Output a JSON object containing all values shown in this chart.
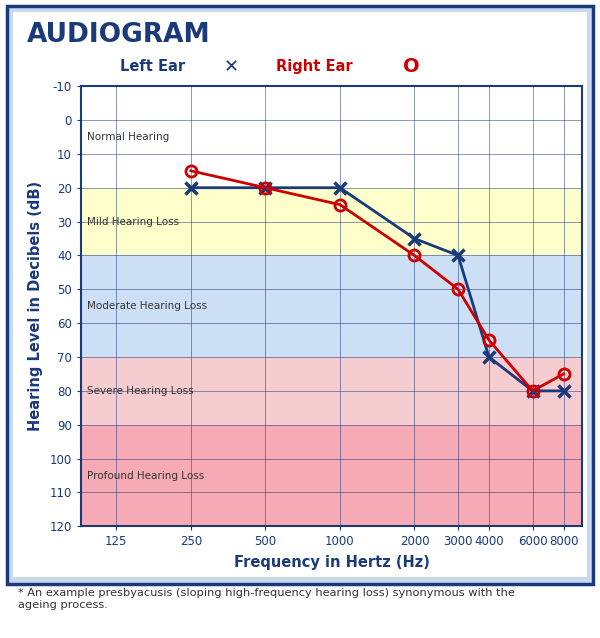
{
  "title": "AUDIOGRAM",
  "legend_left_label": "Left Ear",
  "legend_right_label": "Right Ear",
  "xlabel": "Frequency in Hertz (Hz)",
  "ylabel": "Hearing Level in Decibels (dB)",
  "footnote": "* An example presbyacusis (sloping high-frequency hearing loss) synonymous with the\nageing process.",
  "x_ticks": [
    125,
    250,
    500,
    1000,
    2000,
    3000,
    4000,
    6000,
    8000
  ],
  "x_tick_labels": [
    "125",
    "250",
    "500",
    "1000",
    "2000",
    "3000",
    "4000",
    "6000",
    "8000"
  ],
  "y_ticks": [
    -10,
    0,
    10,
    20,
    30,
    40,
    50,
    60,
    70,
    80,
    90,
    100,
    110,
    120
  ],
  "ylim": [
    -10,
    120
  ],
  "xlim": [
    90,
    9500
  ],
  "left_ear_x": [
    250,
    500,
    1000,
    2000,
    3000,
    4000,
    6000,
    8000
  ],
  "left_ear_y": [
    20,
    20,
    20,
    35,
    40,
    70,
    80,
    80
  ],
  "right_ear_x": [
    250,
    500,
    1000,
    2000,
    3000,
    4000,
    6000,
    8000
  ],
  "right_ear_y": [
    15,
    20,
    25,
    40,
    50,
    65,
    80,
    75
  ],
  "hearing_zones": [
    {
      "label": "Normal Hearing",
      "y_start": -10,
      "y_end": 20,
      "color": "#ffffff"
    },
    {
      "label": "Mild Hearing Loss",
      "y_start": 20,
      "y_end": 40,
      "color": "#ffffcc"
    },
    {
      "label": "Moderate Hearing Loss",
      "y_start": 40,
      "y_end": 70,
      "color": "#ccdff5"
    },
    {
      "label": "Severe Hearing Loss",
      "y_start": 70,
      "y_end": 90,
      "color": "#f5ccd0"
    },
    {
      "label": "Profound Hearing Loss",
      "y_start": 90,
      "y_end": 120,
      "color": "#f5aab5"
    }
  ],
  "grid_color": "#1a3a7a",
  "line_color_left": "#1a3a7a",
  "line_color_right": "#cc0000",
  "title_color": "#1a3a7a",
  "axis_label_color": "#1a3a7a",
  "zone_label_color": "#333333",
  "border_color": "#1a3a7a",
  "background_color": "#ffffff",
  "outer_bg": "#c8d8ee"
}
